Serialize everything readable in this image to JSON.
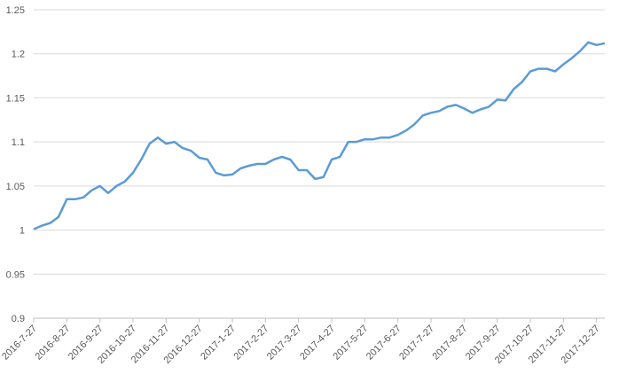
{
  "chart_data": {
    "type": "line",
    "categories": [
      "2016-7-27",
      null,
      null,
      null,
      "2016-8-27",
      null,
      null,
      null,
      "2016-9-27",
      null,
      null,
      null,
      "2016-10-27",
      null,
      null,
      null,
      "2016-11-27",
      null,
      null,
      null,
      "2016-12-27",
      null,
      null,
      null,
      "2017-1-27",
      null,
      null,
      null,
      "2017-2-27",
      null,
      null,
      null,
      "2017-3-27",
      null,
      null,
      null,
      "2017-4-27",
      null,
      null,
      null,
      "2017-5-27",
      null,
      null,
      null,
      "2017-6-27",
      null,
      null,
      null,
      "2017-7-27",
      null,
      null,
      null,
      "2017-8-27",
      null,
      null,
      null,
      "2017-9-27",
      null,
      null,
      null,
      "2017-10-27",
      null,
      null,
      null,
      "2017-11-27",
      null,
      null,
      null,
      "2017-12-27",
      null
    ],
    "series": [
      {
        "color": "#5b9bd5",
        "values": [
          1.001,
          1.005,
          1.008,
          1.015,
          1.035,
          1.035,
          1.037,
          1.045,
          1.05,
          1.042,
          1.05,
          1.055,
          1.065,
          1.08,
          1.098,
          1.105,
          1.098,
          1.1,
          1.093,
          1.09,
          1.082,
          1.08,
          1.065,
          1.062,
          1.063,
          1.07,
          1.073,
          1.075,
          1.075,
          1.08,
          1.083,
          1.08,
          1.068,
          1.068,
          1.058,
          1.06,
          1.08,
          1.083,
          1.1,
          1.1,
          1.103,
          1.103,
          1.105,
          1.105,
          1.108,
          1.113,
          1.12,
          1.13,
          1.133,
          1.135,
          1.14,
          1.142,
          1.138,
          1.133,
          1.137,
          1.14,
          1.148,
          1.147,
          1.16,
          1.168,
          1.18,
          1.183,
          1.183,
          1.18,
          1.188,
          1.195,
          1.203,
          1.213,
          1.21,
          1.212
        ]
      }
    ],
    "ylim": [
      0.9,
      1.25
    ],
    "yticks": [
      0.9,
      0.95,
      1,
      1.05,
      1.1,
      1.15,
      1.2,
      1.25
    ],
    "grid": true
  }
}
